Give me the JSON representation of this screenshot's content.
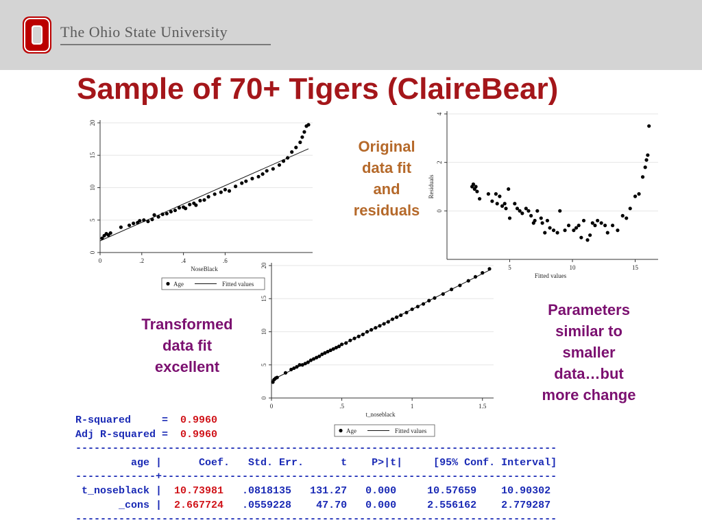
{
  "header": {
    "university_name": "The Ohio State University",
    "logo_icon": "ohio-state-block-o-logo",
    "brand_red": "#bb0000",
    "banner_color": "#d4d4d4"
  },
  "slide": {
    "title": "Sample of 70+ Tigers (ClaireBear)",
    "annotation_original": [
      "Original",
      "data fit",
      "and",
      "residuals"
    ],
    "annotation_transformed": [
      "Transformed",
      "data fit",
      "excellent"
    ],
    "annotation_parameters": [
      "Parameters",
      "similar to",
      "smaller",
      "data…but",
      "more change"
    ],
    "title_color": "#a4161a",
    "orange_color": "#b5692a",
    "purple_color": "#7b1070"
  },
  "chart_data": [
    {
      "type": "scatter",
      "xlabel": "NoseBlack",
      "xticks": [
        "0",
        ".2",
        ".4",
        ".6"
      ],
      "yticks": [
        "0",
        "5",
        "10",
        "15",
        "20"
      ],
      "xlim": [
        0,
        1.0
      ],
      "ylim": [
        0,
        20
      ],
      "legend": [
        "Age",
        "Fitted values"
      ],
      "legend_placement": "bottom",
      "fitted_line": [
        [
          0.0,
          1.8
        ],
        [
          1.0,
          16.0
        ]
      ],
      "series": [
        {
          "name": "Age",
          "points": [
            [
              0.01,
              2.2
            ],
            [
              0.02,
              2.6
            ],
            [
              0.03,
              2.9
            ],
            [
              0.04,
              2.7
            ],
            [
              0.05,
              3.0
            ],
            [
              0.1,
              3.9
            ],
            [
              0.14,
              4.2
            ],
            [
              0.16,
              4.5
            ],
            [
              0.18,
              4.6
            ],
            [
              0.19,
              4.9
            ],
            [
              0.21,
              5.0
            ],
            [
              0.23,
              4.8
            ],
            [
              0.25,
              5.1
            ],
            [
              0.26,
              5.8
            ],
            [
              0.28,
              5.5
            ],
            [
              0.3,
              5.9
            ],
            [
              0.32,
              6.0
            ],
            [
              0.34,
              6.3
            ],
            [
              0.36,
              6.5
            ],
            [
              0.38,
              6.9
            ],
            [
              0.4,
              7.0
            ],
            [
              0.41,
              6.8
            ],
            [
              0.43,
              7.4
            ],
            [
              0.45,
              7.6
            ],
            [
              0.46,
              7.3
            ],
            [
              0.48,
              8.0
            ],
            [
              0.5,
              8.1
            ],
            [
              0.52,
              8.6
            ],
            [
              0.55,
              9.0
            ],
            [
              0.58,
              9.3
            ],
            [
              0.6,
              9.7
            ],
            [
              0.62,
              9.5
            ],
            [
              0.65,
              10.2
            ],
            [
              0.68,
              10.7
            ],
            [
              0.7,
              11.0
            ],
            [
              0.73,
              11.4
            ],
            [
              0.76,
              11.7
            ],
            [
              0.78,
              12.1
            ],
            [
              0.8,
              12.6
            ],
            [
              0.83,
              12.9
            ],
            [
              0.86,
              13.5
            ],
            [
              0.88,
              14.1
            ],
            [
              0.9,
              14.6
            ],
            [
              0.92,
              15.5
            ],
            [
              0.94,
              16.2
            ],
            [
              0.96,
              17.0
            ],
            [
              0.97,
              17.8
            ],
            [
              0.98,
              18.6
            ],
            [
              0.99,
              19.5
            ],
            [
              1.0,
              19.7
            ]
          ]
        }
      ]
    },
    {
      "type": "scatter",
      "xlabel": "Fitted values",
      "ylabel": "Residuals",
      "xticks": [
        "5",
        "10",
        "15"
      ],
      "yticks": [
        "0",
        "2",
        "4"
      ],
      "xlim": [
        0,
        16.5
      ],
      "ylim": [
        -2,
        4
      ],
      "series": [
        {
          "name": "",
          "points": [
            [
              2.0,
              1.0
            ],
            [
              2.1,
              1.1
            ],
            [
              2.2,
              0.9
            ],
            [
              2.3,
              1.0
            ],
            [
              2.4,
              0.8
            ],
            [
              2.6,
              0.5
            ],
            [
              3.3,
              0.7
            ],
            [
              3.6,
              0.4
            ],
            [
              3.9,
              0.7
            ],
            [
              4.0,
              0.3
            ],
            [
              4.2,
              0.6
            ],
            [
              4.4,
              0.2
            ],
            [
              4.6,
              0.3
            ],
            [
              4.7,
              0.1
            ],
            [
              4.9,
              0.9
            ],
            [
              5.0,
              -0.3
            ],
            [
              5.4,
              0.3
            ],
            [
              5.6,
              0.1
            ],
            [
              5.8,
              0.0
            ],
            [
              6.0,
              -0.1
            ],
            [
              6.3,
              0.1
            ],
            [
              6.5,
              0.0
            ],
            [
              6.7,
              -0.2
            ],
            [
              6.9,
              -0.5
            ],
            [
              7.0,
              -0.4
            ],
            [
              7.2,
              0.0
            ],
            [
              7.5,
              -0.3
            ],
            [
              7.6,
              -0.5
            ],
            [
              7.8,
              -0.9
            ],
            [
              8.0,
              -0.4
            ],
            [
              8.2,
              -0.7
            ],
            [
              8.5,
              -0.8
            ],
            [
              8.8,
              -0.9
            ],
            [
              9.0,
              0.0
            ],
            [
              9.4,
              -0.8
            ],
            [
              9.7,
              -0.6
            ],
            [
              10.1,
              -0.8
            ],
            [
              10.3,
              -0.7
            ],
            [
              10.5,
              -0.6
            ],
            [
              10.7,
              -1.1
            ],
            [
              10.9,
              -0.4
            ],
            [
              11.2,
              -1.2
            ],
            [
              11.4,
              -1.0
            ],
            [
              11.6,
              -0.5
            ],
            [
              11.8,
              -0.6
            ],
            [
              12.0,
              -0.4
            ],
            [
              12.3,
              -0.5
            ],
            [
              12.6,
              -0.6
            ],
            [
              12.8,
              -0.9
            ],
            [
              13.2,
              -0.6
            ],
            [
              13.6,
              -0.8
            ],
            [
              14.0,
              -0.2
            ],
            [
              14.3,
              -0.3
            ],
            [
              14.6,
              0.1
            ],
            [
              15.0,
              0.6
            ],
            [
              15.3,
              0.7
            ],
            [
              15.6,
              1.4
            ],
            [
              15.8,
              1.8
            ],
            [
              15.9,
              2.1
            ],
            [
              16.0,
              2.3
            ],
            [
              16.1,
              3.5
            ]
          ]
        }
      ]
    },
    {
      "type": "scatter",
      "xlabel": "t_noseblack",
      "xticks": [
        "0",
        ".5",
        "1",
        "1.5"
      ],
      "yticks": [
        "0",
        "5",
        "10",
        "15",
        "20"
      ],
      "xlim": [
        0,
        1.55
      ],
      "ylim": [
        0,
        20
      ],
      "legend": [
        "Age",
        "Fitted values"
      ],
      "legend_placement": "bottom",
      "fitted_line": [
        [
          0.0,
          2.667724
        ],
        [
          1.55,
          19.31
        ]
      ],
      "series": [
        {
          "name": "Age",
          "points": [
            [
              0.01,
              2.4
            ],
            [
              0.02,
              2.8
            ],
            [
              0.03,
              3.0
            ],
            [
              0.04,
              3.1
            ],
            [
              0.1,
              3.8
            ],
            [
              0.14,
              4.3
            ],
            [
              0.16,
              4.5
            ],
            [
              0.18,
              4.7
            ],
            [
              0.2,
              5.0
            ],
            [
              0.22,
              5.0
            ],
            [
              0.24,
              5.2
            ],
            [
              0.26,
              5.4
            ],
            [
              0.28,
              5.7
            ],
            [
              0.3,
              5.9
            ],
            [
              0.32,
              6.1
            ],
            [
              0.34,
              6.3
            ],
            [
              0.36,
              6.6
            ],
            [
              0.38,
              6.8
            ],
            [
              0.4,
              7.0
            ],
            [
              0.42,
              7.2
            ],
            [
              0.44,
              7.4
            ],
            [
              0.46,
              7.6
            ],
            [
              0.48,
              7.8
            ],
            [
              0.5,
              8.1
            ],
            [
              0.53,
              8.3
            ],
            [
              0.56,
              8.7
            ],
            [
              0.59,
              9.0
            ],
            [
              0.62,
              9.3
            ],
            [
              0.65,
              9.6
            ],
            [
              0.68,
              10.0
            ],
            [
              0.71,
              10.3
            ],
            [
              0.74,
              10.6
            ],
            [
              0.77,
              10.9
            ],
            [
              0.8,
              11.2
            ],
            [
              0.83,
              11.5
            ],
            [
              0.86,
              11.9
            ],
            [
              0.89,
              12.2
            ],
            [
              0.92,
              12.5
            ],
            [
              0.96,
              12.9
            ],
            [
              1.0,
              13.4
            ],
            [
              1.04,
              13.8
            ],
            [
              1.08,
              14.2
            ],
            [
              1.12,
              14.7
            ],
            [
              1.16,
              15.1
            ],
            [
              1.22,
              15.7
            ],
            [
              1.28,
              16.4
            ],
            [
              1.34,
              17.0
            ],
            [
              1.4,
              17.7
            ],
            [
              1.45,
              18.3
            ],
            [
              1.5,
              18.9
            ],
            [
              1.55,
              19.5
            ]
          ]
        }
      ]
    }
  ],
  "regression": {
    "r_squared_label": "R-squared     =",
    "r_squared_value": "0.9960",
    "adj_r_squared_label": "Adj R-squared =",
    "adj_r_squared_value": "0.9960",
    "rule": "------------------------------------------------------------------------------",
    "header_row": "         age |      Coef.   Std. Err.      t    P>|t|     [95% Conf. Interval]",
    "mid_rule": "-------------+----------------------------------------------------------------",
    "rows": [
      {
        "label": " t_noseblack |  ",
        "coef": "10.73981",
        "rest": "   .0818135   131.27   0.000     10.57659    10.90302"
      },
      {
        "label": "       _cons |  ",
        "coef": "2.667724",
        "rest": "   .0559228    47.70   0.000     2.556162    2.779287"
      }
    ],
    "text_color": "#1a2ab5",
    "coef_color": "#d0141a"
  }
}
